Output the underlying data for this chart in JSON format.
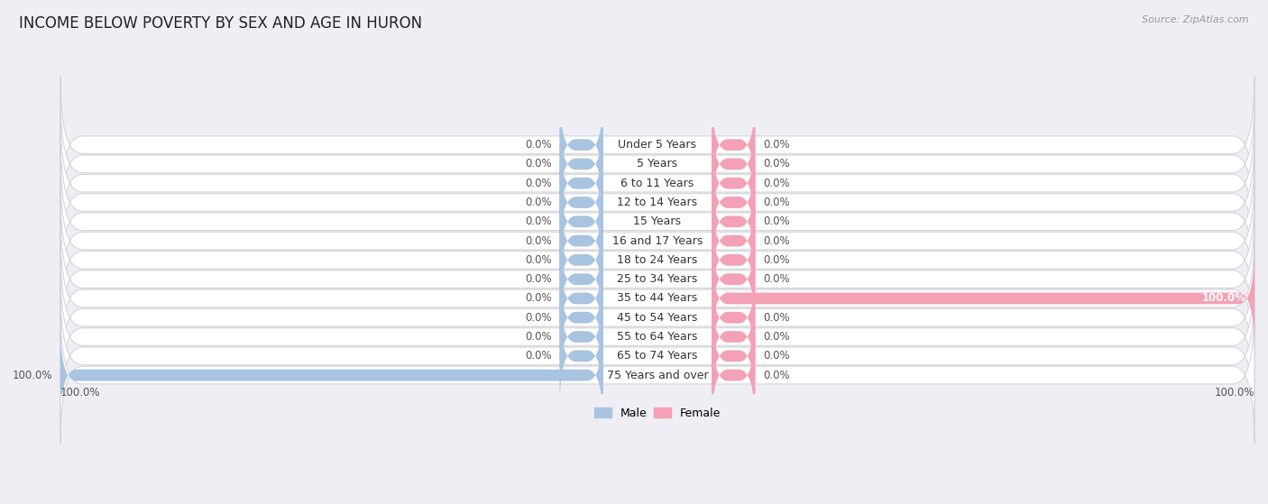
{
  "title": "INCOME BELOW POVERTY BY SEX AND AGE IN HURON",
  "source": "Source: ZipAtlas.com",
  "categories": [
    "Under 5 Years",
    "5 Years",
    "6 to 11 Years",
    "12 to 14 Years",
    "15 Years",
    "16 and 17 Years",
    "18 to 24 Years",
    "25 to 34 Years",
    "35 to 44 Years",
    "45 to 54 Years",
    "55 to 64 Years",
    "65 to 74 Years",
    "75 Years and over"
  ],
  "male_values": [
    0.0,
    0.0,
    0.0,
    0.0,
    0.0,
    0.0,
    0.0,
    0.0,
    0.0,
    0.0,
    0.0,
    0.0,
    100.0
  ],
  "female_values": [
    0.0,
    0.0,
    0.0,
    0.0,
    0.0,
    0.0,
    0.0,
    0.0,
    100.0,
    0.0,
    0.0,
    0.0,
    0.0
  ],
  "male_color": "#a8c4e0",
  "female_color": "#f4a0b5",
  "male_label": "Male",
  "female_label": "Female",
  "background_color": "#eeeef4",
  "max_value": 100.0,
  "title_fontsize": 12,
  "label_fontsize": 9,
  "value_fontsize": 8.5,
  "source_fontsize": 8
}
